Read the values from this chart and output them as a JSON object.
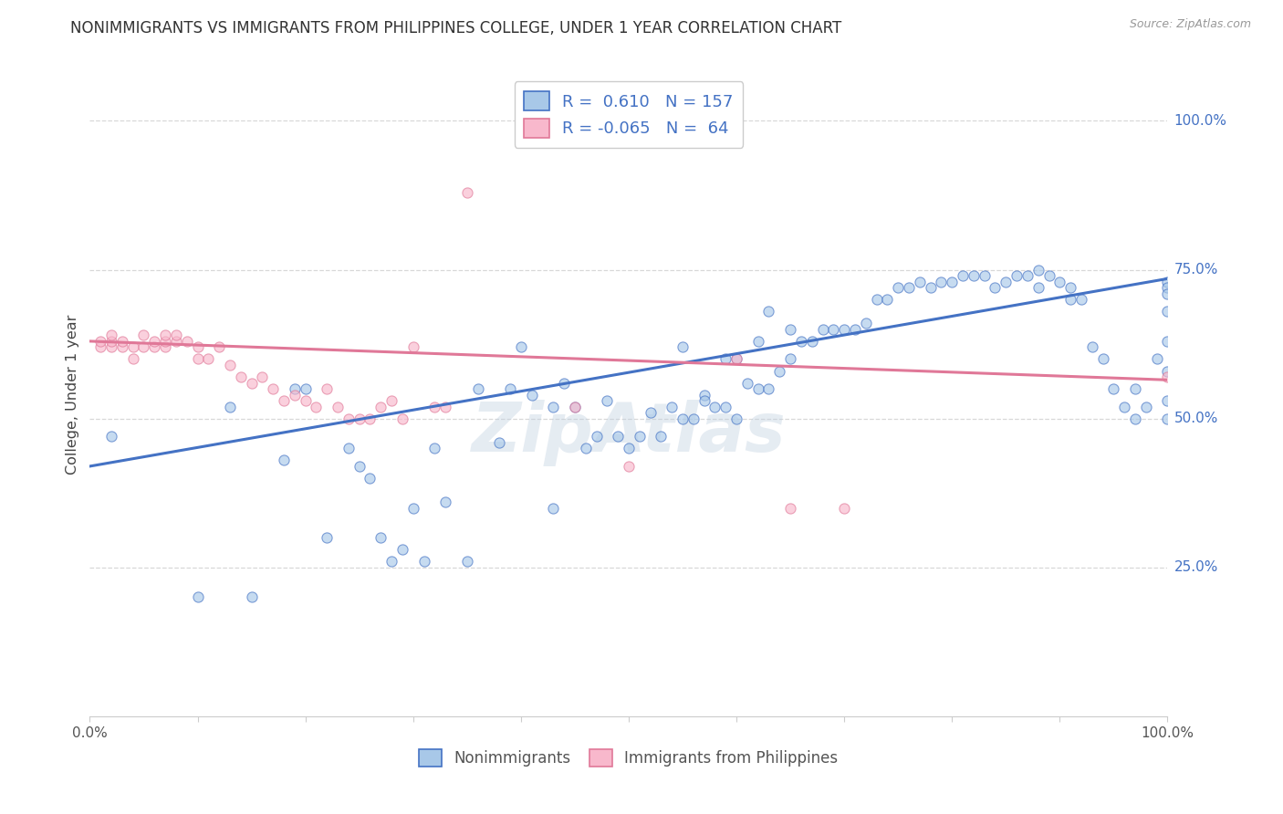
{
  "title": "NONIMMIGRANTS VS IMMIGRANTS FROM PHILIPPINES COLLEGE, UNDER 1 YEAR CORRELATION CHART",
  "source": "Source: ZipAtlas.com",
  "ylabel": "College, Under 1 year",
  "ytick_labels": [
    "100.0%",
    "75.0%",
    "50.0%",
    "25.0%"
  ],
  "ytick_positions": [
    1.0,
    0.75,
    0.5,
    0.25
  ],
  "entries": [
    {
      "label": "Nonimmigrants",
      "R": "0.610",
      "N": "157",
      "face": "#a8c8e8",
      "edge": "#4472c4"
    },
    {
      "label": "Immigrants from Philippines",
      "R": "-0.065",
      "N": "64",
      "face": "#f8b8cc",
      "edge": "#e07898"
    }
  ],
  "watermark": "ZipAtlas",
  "blue_x": [
    0.02,
    0.1,
    0.13,
    0.15,
    0.18,
    0.19,
    0.2,
    0.22,
    0.24,
    0.25,
    0.26,
    0.27,
    0.28,
    0.29,
    0.3,
    0.31,
    0.32,
    0.33,
    0.35,
    0.36,
    0.38,
    0.39,
    0.4,
    0.41,
    0.43,
    0.43,
    0.44,
    0.45,
    0.46,
    0.47,
    0.48,
    0.49,
    0.5,
    0.51,
    0.52,
    0.53,
    0.54,
    0.55,
    0.56,
    0.57,
    0.58,
    0.59,
    0.6,
    0.61,
    0.62,
    0.63,
    0.64,
    0.55,
    0.57,
    0.59,
    0.6,
    0.62,
    0.63,
    0.65,
    0.65,
    0.66,
    0.67,
    0.68,
    0.69,
    0.7,
    0.71,
    0.72,
    0.73,
    0.74,
    0.75,
    0.76,
    0.77,
    0.78,
    0.79,
    0.8,
    0.81,
    0.82,
    0.83,
    0.84,
    0.85,
    0.86,
    0.87,
    0.88,
    0.88,
    0.89,
    0.9,
    0.91,
    0.91,
    0.92,
    0.93,
    0.94,
    0.95,
    0.96,
    0.97,
    0.97,
    0.98,
    0.99,
    1.0,
    1.0,
    1.0,
    1.0,
    1.0,
    1.0,
    1.0,
    1.0
  ],
  "blue_y": [
    0.47,
    0.2,
    0.52,
    0.2,
    0.43,
    0.55,
    0.55,
    0.3,
    0.45,
    0.42,
    0.4,
    0.3,
    0.26,
    0.28,
    0.35,
    0.26,
    0.45,
    0.36,
    0.26,
    0.55,
    0.46,
    0.55,
    0.62,
    0.54,
    0.52,
    0.35,
    0.56,
    0.52,
    0.45,
    0.47,
    0.53,
    0.47,
    0.45,
    0.47,
    0.51,
    0.47,
    0.52,
    0.5,
    0.5,
    0.54,
    0.52,
    0.52,
    0.5,
    0.56,
    0.55,
    0.55,
    0.58,
    0.62,
    0.53,
    0.6,
    0.6,
    0.63,
    0.68,
    0.65,
    0.6,
    0.63,
    0.63,
    0.65,
    0.65,
    0.65,
    0.65,
    0.66,
    0.7,
    0.7,
    0.72,
    0.72,
    0.73,
    0.72,
    0.73,
    0.73,
    0.74,
    0.74,
    0.74,
    0.72,
    0.73,
    0.74,
    0.74,
    0.75,
    0.72,
    0.74,
    0.73,
    0.72,
    0.7,
    0.7,
    0.62,
    0.6,
    0.55,
    0.52,
    0.55,
    0.5,
    0.52,
    0.6,
    0.73,
    0.72,
    0.71,
    0.68,
    0.63,
    0.58,
    0.53,
    0.5
  ],
  "pink_x": [
    0.01,
    0.01,
    0.02,
    0.02,
    0.02,
    0.03,
    0.03,
    0.04,
    0.04,
    0.05,
    0.05,
    0.06,
    0.06,
    0.07,
    0.07,
    0.07,
    0.08,
    0.08,
    0.09,
    0.1,
    0.1,
    0.11,
    0.12,
    0.13,
    0.14,
    0.15,
    0.16,
    0.17,
    0.18,
    0.19,
    0.2,
    0.21,
    0.22,
    0.23,
    0.24,
    0.25,
    0.26,
    0.27,
    0.28,
    0.29,
    0.3,
    0.32,
    0.33,
    0.35,
    0.45,
    0.5,
    0.6,
    0.65,
    0.7,
    1.0
  ],
  "pink_y": [
    0.62,
    0.63,
    0.62,
    0.63,
    0.64,
    0.62,
    0.63,
    0.6,
    0.62,
    0.62,
    0.64,
    0.62,
    0.63,
    0.62,
    0.63,
    0.64,
    0.63,
    0.64,
    0.63,
    0.62,
    0.6,
    0.6,
    0.62,
    0.59,
    0.57,
    0.56,
    0.57,
    0.55,
    0.53,
    0.54,
    0.53,
    0.52,
    0.55,
    0.52,
    0.5,
    0.5,
    0.5,
    0.52,
    0.53,
    0.5,
    0.62,
    0.52,
    0.52,
    0.88,
    0.52,
    0.42,
    0.6,
    0.35,
    0.35,
    0.57
  ],
  "blue_line_x": [
    0.0,
    1.0
  ],
  "blue_line_y": [
    0.42,
    0.735
  ],
  "pink_line_x": [
    0.0,
    1.0
  ],
  "pink_line_y": [
    0.63,
    0.565
  ],
  "xlim": [
    0.0,
    1.0
  ],
  "ylim": [
    0.0,
    1.08
  ],
  "bg": "#ffffff",
  "grid_color": "#d8d8d8",
  "title_color": "#333333",
  "source_color": "#999999",
  "ylabel_color": "#444444"
}
